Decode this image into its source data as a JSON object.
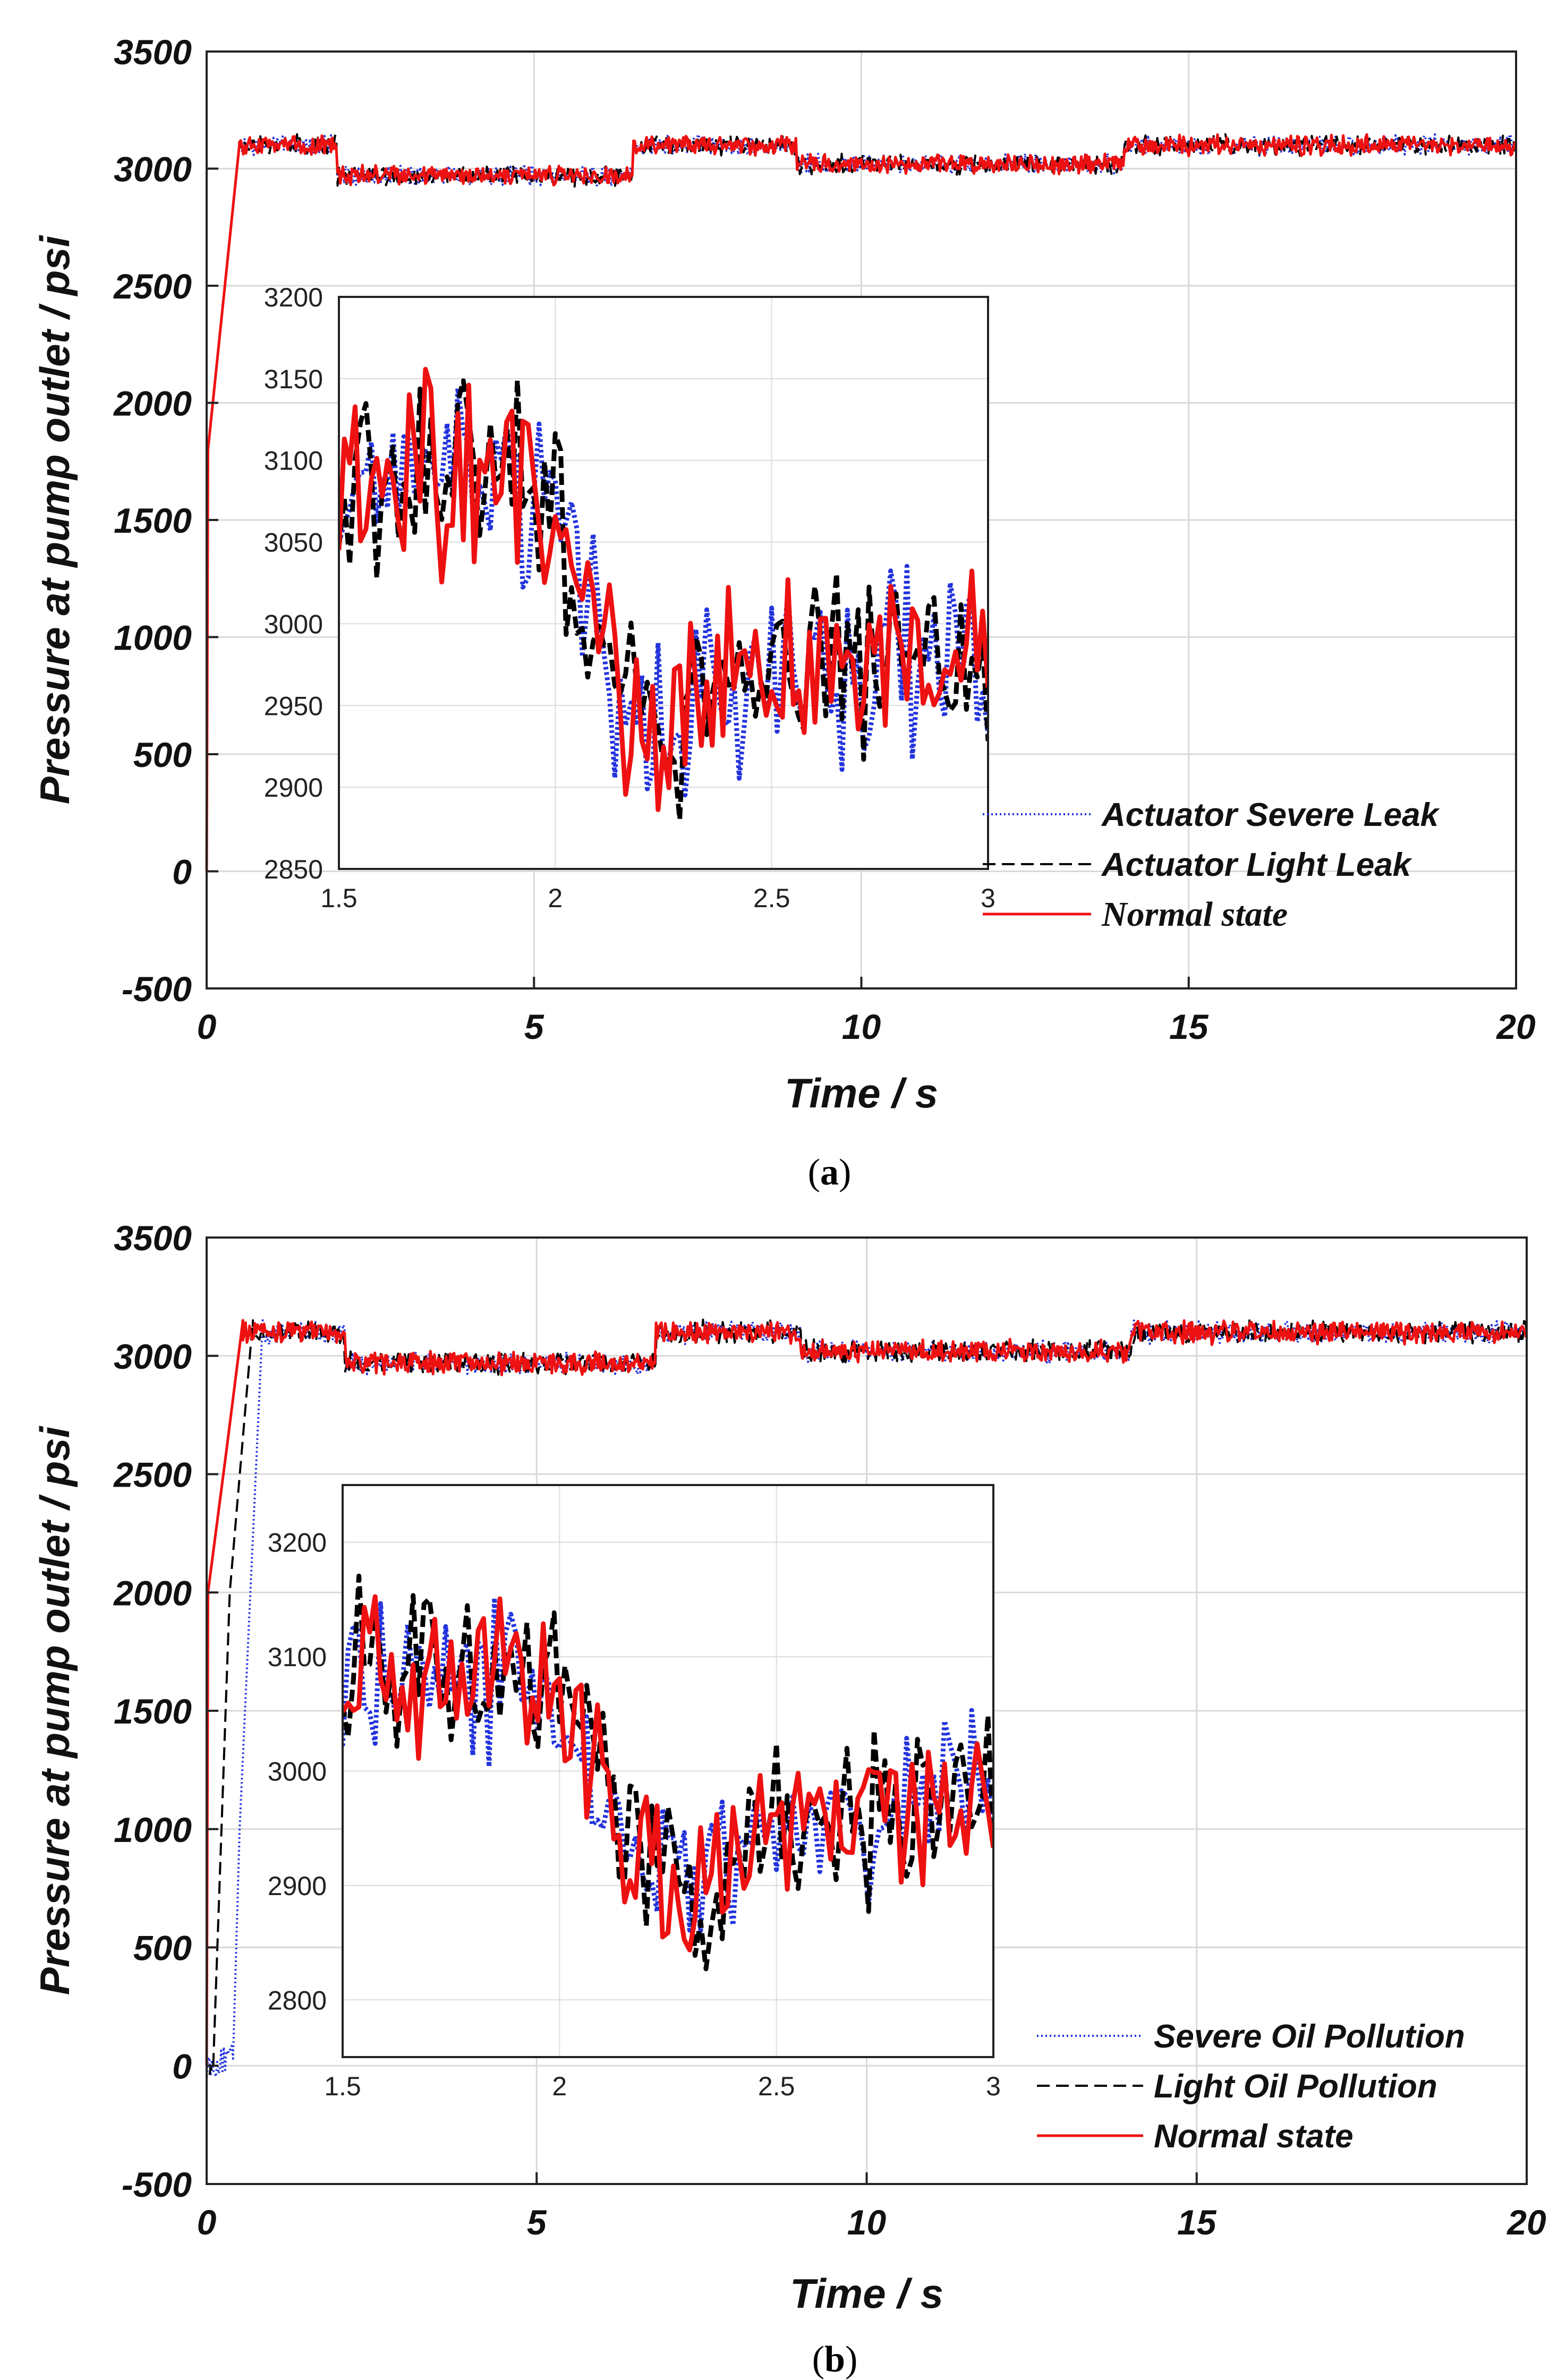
{
  "chart_data": [
    {
      "type": "line",
      "panel_label": "a",
      "xlabel": "Time / s",
      "ylabel": "Pressure at pump outlet / psi",
      "xlim": [
        0,
        20
      ],
      "ylim": [
        -500,
        3500
      ],
      "xticks": [
        "0",
        "5",
        "10",
        "15",
        "20"
      ],
      "yticks": [
        "-500",
        "0",
        "500",
        "1000",
        "1500",
        "2000",
        "2500",
        "3000",
        "3500"
      ],
      "grid": true,
      "legend_position": "bottom-right",
      "series": [
        {
          "name": "Actuator Severe Leak",
          "style": "dotted",
          "color": "#2233dd"
        },
        {
          "name": "Actuator Light Leak",
          "style": "dashed",
          "color": "#000000"
        },
        {
          "name": "Normal state",
          "style": "solid",
          "color": "#ee1111"
        }
      ],
      "main_profile": {
        "rise": [
          [
            0,
            0
          ],
          [
            0.02,
            1800
          ],
          [
            0.5,
            3100
          ]
        ],
        "segments": [
          [
            0.5,
            2.0,
            3100
          ],
          [
            2.0,
            6.5,
            2970
          ],
          [
            6.5,
            9.0,
            3100
          ],
          [
            9.0,
            14.0,
            3020
          ],
          [
            14.0,
            20.0,
            3100
          ]
        ],
        "noise_amplitude": 40
      },
      "inset": {
        "xlim": [
          1.5,
          3
        ],
        "ylim": [
          2850,
          3200
        ],
        "xticks": [
          "1.5",
          "2",
          "2.5",
          "3"
        ],
        "yticks": [
          "2850",
          "2900",
          "2950",
          "3000",
          "3050",
          "3100",
          "3150",
          "3200"
        ],
        "profile": [
          [
            1.5,
            3080
          ],
          [
            1.8,
            3090
          ],
          [
            2.0,
            3080
          ],
          [
            2.1,
            2990
          ],
          [
            2.2,
            2930
          ],
          [
            2.5,
            2975
          ],
          [
            3.0,
            2985
          ]
        ],
        "noise_amplitude": 55
      }
    },
    {
      "type": "line",
      "panel_label": "b",
      "xlabel": "Time / s",
      "ylabel": "Pressure at pump outlet / psi",
      "xlim": [
        0,
        20
      ],
      "ylim": [
        -500,
        3500
      ],
      "xticks": [
        "0",
        "5",
        "10",
        "15",
        "20"
      ],
      "yticks": [
        "-500",
        "0",
        "500",
        "1000",
        "1500",
        "2000",
        "2500",
        "3000",
        "3500"
      ],
      "grid": true,
      "legend_position": "bottom-right",
      "series": [
        {
          "name": "Severe Oil Pollution",
          "style": "dotted",
          "color": "#2233dd"
        },
        {
          "name": "Light Oil Pollution",
          "style": "dashed",
          "color": "#000000"
        },
        {
          "name": "Normal state",
          "style": "solid",
          "color": "#ee1111"
        }
      ],
      "rise_profiles": {
        "Normal state": [
          [
            0,
            0
          ],
          [
            0.02,
            2000
          ],
          [
            0.3,
            2600
          ],
          [
            0.55,
            3150
          ]
        ],
        "Light Oil Pollution": [
          [
            0,
            0
          ],
          [
            0.1,
            0
          ],
          [
            0.35,
            2000
          ],
          [
            0.7,
            3150
          ]
        ],
        "Severe Oil Pollution": [
          [
            0,
            0
          ],
          [
            0.4,
            30
          ],
          [
            0.5,
            1000
          ],
          [
            0.85,
            3150
          ]
        ]
      },
      "main_profile": {
        "segments": [
          [
            0.8,
            2.1,
            3100
          ],
          [
            2.1,
            6.8,
            2970
          ],
          [
            6.8,
            9.0,
            3100
          ],
          [
            9.0,
            14.0,
            3020
          ],
          [
            14.0,
            20.0,
            3100
          ]
        ],
        "noise_amplitude": 45
      },
      "inset": {
        "xlim": [
          1.5,
          3
        ],
        "ylim": [
          2750,
          3250
        ],
        "xticks": [
          "1.5",
          "2",
          "2.5",
          "3"
        ],
        "yticks": [
          "2800",
          "2900",
          "3000",
          "3100",
          "3200"
        ],
        "profile": [
          [
            1.5,
            3090
          ],
          [
            1.9,
            3090
          ],
          [
            2.05,
            3030
          ],
          [
            2.15,
            2950
          ],
          [
            2.3,
            2890
          ],
          [
            2.5,
            2950
          ],
          [
            3.0,
            2985
          ]
        ],
        "noise_amplitude": 70
      }
    }
  ]
}
